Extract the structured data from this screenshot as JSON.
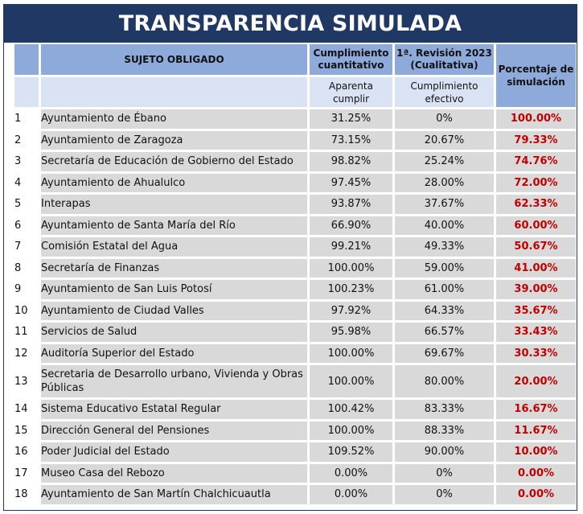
{
  "title": "TRANSPARENCIA SIMULADA",
  "header": {
    "sujeto": "SUJETO OBLIGADO",
    "cuantitativo": "Cumplimiento cuantitativo",
    "cualitativa": "1ª. Revisión 2023 (Cualitativa)",
    "porcentaje": "Porcentaje de simulación",
    "aparenta": "Aparenta cumplir",
    "efectivo": "Cumplimiento efectivo"
  },
  "colors": {
    "title_bg": "#1f3864",
    "header_bg": "#8eaadb",
    "subheader_bg": "#dae3f3",
    "row_bg": "#d9d9d9",
    "simulation_text": "#c00000"
  },
  "rows": [
    {
      "n": "1",
      "sujeto": "Ayuntamiento de Ébano",
      "aparenta": "31.25%",
      "efectivo": "0%",
      "simulacion": "100.00%"
    },
    {
      "n": "2",
      "sujeto": "Ayuntamiento de Zaragoza",
      "aparenta": "73.15%",
      "efectivo": "20.67%",
      "simulacion": "79.33%"
    },
    {
      "n": "3",
      "sujeto": "Secretaría de Educación de Gobierno del Estado",
      "aparenta": "98.82%",
      "efectivo": "25.24%",
      "simulacion": "74.76%"
    },
    {
      "n": "4",
      "sujeto": "Ayuntamiento de Ahualulco",
      "aparenta": "97.45%",
      "efectivo": "28.00%",
      "simulacion": "72.00%"
    },
    {
      "n": "5",
      "sujeto": "Interapas",
      "aparenta": "93.87%",
      "efectivo": "37.67%",
      "simulacion": "62.33%"
    },
    {
      "n": "6",
      "sujeto": "Ayuntamiento de Santa María del Río",
      "aparenta": "66.90%",
      "efectivo": "40.00%",
      "simulacion": "60.00%"
    },
    {
      "n": "7",
      "sujeto": "Comisión Estatal del Agua",
      "aparenta": "99.21%",
      "efectivo": "49.33%",
      "simulacion": "50.67%"
    },
    {
      "n": "8",
      "sujeto": "Secretaría de Finanzas",
      "aparenta": "100.00%",
      "efectivo": "59.00%",
      "simulacion": "41.00%"
    },
    {
      "n": "9",
      "sujeto": "Ayuntamiento de San Luis Potosí",
      "aparenta": "100.23%",
      "efectivo": "61.00%",
      "simulacion": "39.00%"
    },
    {
      "n": "10",
      "sujeto": "Ayuntamiento de Ciudad Valles",
      "aparenta": "97.92%",
      "efectivo": "64.33%",
      "simulacion": "35.67%"
    },
    {
      "n": "11",
      "sujeto": "Servicios de Salud",
      "aparenta": "95.98%",
      "efectivo": "66.57%",
      "simulacion": "33.43%"
    },
    {
      "n": "12",
      "sujeto": "Auditoría Superior del Estado",
      "aparenta": "100.00%",
      "efectivo": "69.67%",
      "simulacion": "30.33%"
    },
    {
      "n": "13",
      "sujeto": "Secretaria de Desarrollo urbano, Vivienda y Obras Públicas",
      "aparenta": "100.00%",
      "efectivo": "80.00%",
      "simulacion": "20.00%"
    },
    {
      "n": "14",
      "sujeto": "Sistema Educativo Estatal Regular",
      "aparenta": "100.42%",
      "efectivo": "83.33%",
      "simulacion": "16.67%"
    },
    {
      "n": "15",
      "sujeto": "Dirección General del Pensiones",
      "aparenta": "100.00%",
      "efectivo": "88.33%",
      "simulacion": "11.67%"
    },
    {
      "n": "16",
      "sujeto": "Poder Judicial del Estado",
      "aparenta": "109.52%",
      "efectivo": "90.00%",
      "simulacion": "10.00%"
    },
    {
      "n": "17",
      "sujeto": "Museo Casa del Rebozo",
      "aparenta": "0.00%",
      "efectivo": "0%",
      "simulacion": "0.00%"
    },
    {
      "n": "18",
      "sujeto": "Ayuntamiento de San Martín Chalchicuautla",
      "aparenta": "0.00%",
      "efectivo": "0%",
      "simulacion": "0.00%"
    }
  ]
}
